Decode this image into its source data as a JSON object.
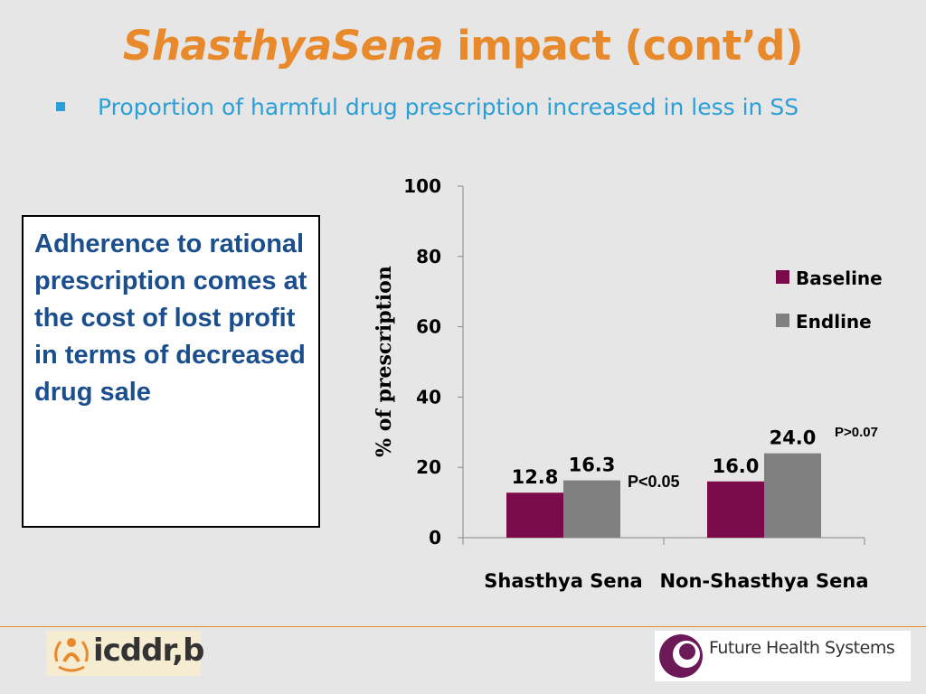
{
  "slide": {
    "title_italic": "ShasthyaSena",
    "title_rest": " impact (cont’d)",
    "bullet": "Proportion of harmful drug prescription increased in less in  SS",
    "note": "Adherence to rational prescription comes at the cost of lost profit in terms of decreased drug sale"
  },
  "chart_data": {
    "type": "bar",
    "title": "",
    "ylabel": "% of prescription",
    "xlabel": "",
    "ylim": [
      0,
      100
    ],
    "yticks": [
      0,
      20,
      40,
      60,
      80,
      100
    ],
    "categories": [
      "Shasthya Sena",
      "Non-Shasthya Sena"
    ],
    "series": [
      {
        "name": "Baseline",
        "values": [
          12.8,
          16.0
        ],
        "labels": [
          "12.8",
          "16.0"
        ],
        "color": "#7b0a4b"
      },
      {
        "name": "Endline",
        "values": [
          16.3,
          24.0
        ],
        "labels": [
          "16.3",
          "24.0"
        ],
        "color": "#808080"
      }
    ],
    "annotations": [
      "P<0.05",
      "P>0.07"
    ],
    "legend_position": "right",
    "grid": false
  },
  "logos": {
    "left_text": "icddr,b",
    "right_text": "Future Health Systems",
    "right_color": "#6b1a57"
  }
}
